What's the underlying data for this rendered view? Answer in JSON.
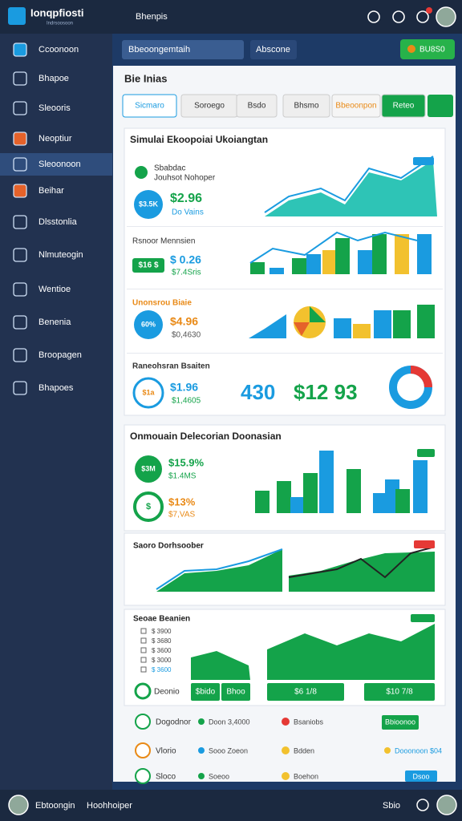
{
  "header": {
    "logo": "Ionqpfiosti",
    "logo_sub": "Indrsoosoon",
    "menu": "Bhenpis"
  },
  "sidebar": {
    "items": [
      "Ccoonoon",
      "Bhapoe",
      "Sleooris",
      "Neoptiur",
      "Sleoonoon",
      "Beihar",
      "Dlsstonlia",
      "Nlmuteogin",
      "Wentioe",
      "Benenia",
      "Broopagen",
      "Bhapoes"
    ]
  },
  "toolbar": {
    "select": "Bbeoongemtaih",
    "tag": "Abscone",
    "button": "BU8S0"
  },
  "panel": {
    "title": "Bie Inias",
    "filters": [
      "Sicmaro",
      "Soroego",
      "Bsdo",
      "Bhsmo",
      "Bbeoonpon",
      "Reteo"
    ]
  },
  "card1": {
    "title": "Simulai Ekoopoiai Ukoiangtan",
    "row1": {
      "label": "Sbabdac",
      "sub": "Jouhsot Nohoper",
      "badge": "$3.5K",
      "value": "$2.96",
      "note": "Do Vains"
    },
    "row2": {
      "label": "Rsnoor Mennsien",
      "badge": "$16 $",
      "value": "$ 0.26",
      "note": "$7.4Sris"
    },
    "row3": {
      "label": "Unonsrou Biaie",
      "badge": "60%",
      "value": "$4.96",
      "note": "$0,4630"
    },
    "row4": {
      "label": "Raneohsran Bsaiten",
      "badge": "$1a",
      "value": "$1.96",
      "note": "$1,4605",
      "big1": "430",
      "big2": "$12 93"
    }
  },
  "card2": {
    "title": "Onmouain Delecorian Doonasian",
    "stat1": {
      "badge": "$3M",
      "value": "$15.9%",
      "note": "$1.4MS"
    },
    "stat2": {
      "badge": "$",
      "value": "$13%",
      "note": "$7,VAS"
    }
  },
  "card3": {
    "title": "Saoro Dorhsoober"
  },
  "card4": {
    "title": "Seoae Beanien",
    "legend": [
      "$ 3900",
      "$ 3680",
      "$ 3600",
      "$ 3000",
      "$ 3600"
    ],
    "footer_label": "Deonio",
    "buttons": [
      "$bido",
      "Bhoo",
      "$6 1/8",
      "$10 7/8"
    ]
  },
  "list": {
    "rows": [
      [
        "Dogodnor",
        "Doon 3,4000",
        "Bsaniobs",
        "Bbioonoo"
      ],
      [
        "Vlorio",
        "Sooo Zoeon",
        "Bdden",
        "Dooonoon $04"
      ],
      [
        "Sloco",
        "Soeoo",
        "Boehon",
        "Dsoo"
      ]
    ]
  },
  "footer": {
    "user": "Ebtoongin",
    "role": "Hoohhoiper",
    "status": "Sbio"
  }
}
